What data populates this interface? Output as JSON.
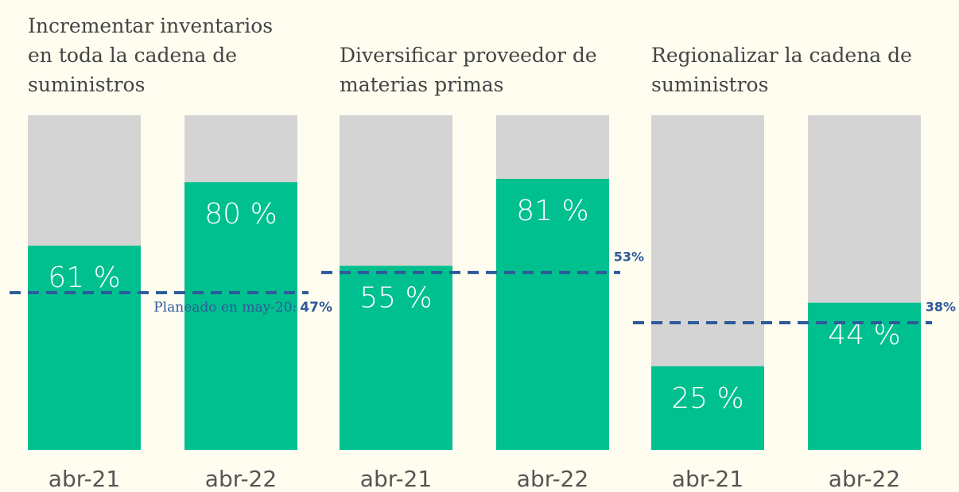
{
  "chart_data": [
    {
      "type": "bar",
      "title": "Incrementar inventarios en toda la cadena de suministros",
      "categories": [
        "abr-21",
        "abr-22"
      ],
      "values": [
        61,
        80
      ],
      "value_labels": [
        "61 %",
        "80 %"
      ],
      "color": "#00c08f",
      "background_color": "#d4d4d4",
      "ylim": [
        0,
        100
      ],
      "reference": {
        "value": 47,
        "label": "47%",
        "annotation": "Planeado en may-20:",
        "color": "#2e5b9a"
      }
    },
    {
      "type": "bar",
      "title": "Diversificar proveedor de materias primas",
      "categories": [
        "abr-21",
        "abr-22"
      ],
      "values": [
        55,
        81
      ],
      "value_labels": [
        "55 %",
        "81 %"
      ],
      "color": "#00c08f",
      "background_color": "#d4d4d4",
      "ylim": [
        0,
        100
      ],
      "reference": {
        "value": 53,
        "label": "53%",
        "color": "#2e5b9a"
      }
    },
    {
      "type": "bar",
      "title": "Regionalizar la cadena de suministros",
      "categories": [
        "abr-21",
        "abr-22"
      ],
      "values": [
        25,
        44
      ],
      "value_labels": [
        "25 %",
        "44 %"
      ],
      "color": "#00c08f",
      "background_color": "#d4d4d4",
      "ylim": [
        0,
        100
      ],
      "reference": {
        "value": 38,
        "label": "38%",
        "color": "#2e5b9a"
      }
    }
  ]
}
